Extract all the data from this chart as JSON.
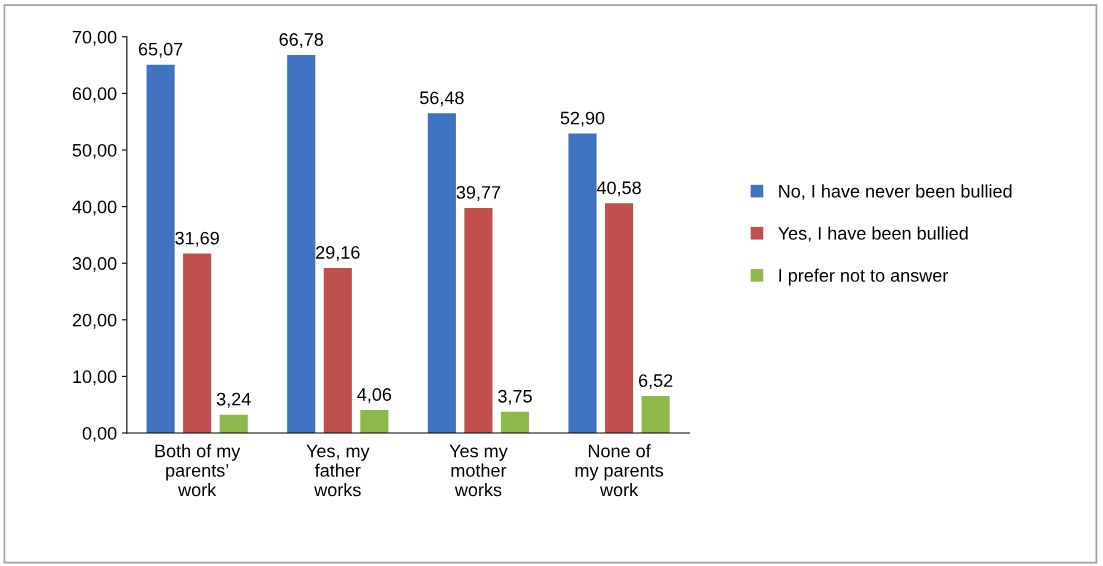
{
  "chart_data": {
    "type": "bar",
    "categories": [
      "Both of my\nparents’\nwork",
      "Yes, my\nfather\nworks",
      "Yes my\nmother\nworks",
      "None of\nmy parents\nwork"
    ],
    "series": [
      {
        "name": "No, I have never been bullied",
        "color": "#3f72c0",
        "values": [
          65.07,
          66.78,
          56.48,
          52.9
        ],
        "value_labels": [
          "65,07",
          "66,78",
          "56,48",
          "52,90"
        ]
      },
      {
        "name": "Yes, I have been bullied",
        "color": "#c0504d",
        "values": [
          31.69,
          29.16,
          39.77,
          40.58
        ],
        "value_labels": [
          "31,69",
          "29,16",
          "39,77",
          "40,58"
        ]
      },
      {
        "name": "I prefer not to answer",
        "color": "#8fb84a",
        "values": [
          3.24,
          4.06,
          3.75,
          6.52
        ],
        "value_labels": [
          "3,24",
          "4,06",
          "3,75",
          "6,52"
        ]
      }
    ],
    "ylim": [
      0,
      70
    ],
    "yticks": [
      {
        "value": 0,
        "label": "0,00"
      },
      {
        "value": 10,
        "label": "10,00"
      },
      {
        "value": 20,
        "label": "20,00"
      },
      {
        "value": 30,
        "label": "30,00"
      },
      {
        "value": 40,
        "label": "40,00"
      },
      {
        "value": 50,
        "label": "50,00"
      },
      {
        "value": 60,
        "label": "60,00"
      },
      {
        "value": 70,
        "label": "70,00"
      }
    ],
    "grid": false,
    "legend": "right"
  }
}
